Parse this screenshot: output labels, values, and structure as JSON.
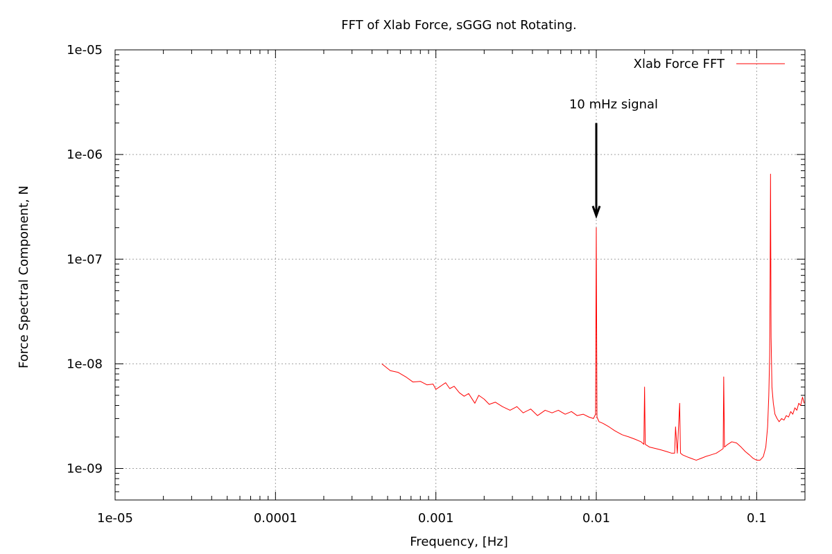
{
  "chart_data": {
    "type": "line",
    "title": "FFT of Xlab Force, sGGG not Rotating.",
    "xlabel": "Frequency, [Hz]",
    "ylabel": "Force Spectral Component, N",
    "x_scale": "log",
    "y_scale": "log",
    "xlim": [
      1e-05,
      0.2
    ],
    "ylim": [
      5e-10,
      1e-05
    ],
    "x_ticks": [
      {
        "value": 1e-05,
        "label": "1e-05"
      },
      {
        "value": 0.0001,
        "label": "0.0001"
      },
      {
        "value": 0.001,
        "label": "0.001"
      },
      {
        "value": 0.01,
        "label": "0.01"
      },
      {
        "value": 0.1,
        "label": "0.1"
      }
    ],
    "y_ticks": [
      {
        "value": 1e-05,
        "label": "1e-05"
      },
      {
        "value": 1e-06,
        "label": "1e-06"
      },
      {
        "value": 1e-07,
        "label": "1e-07"
      },
      {
        "value": 1e-08,
        "label": "1e-08"
      },
      {
        "value": 1e-09,
        "label": "1e-09"
      }
    ],
    "grid": true,
    "legend_position": "top-right",
    "series": [
      {
        "name": "Xlab Force FFT",
        "color": "#ff0000",
        "x": [
          0.00046,
          0.00052,
          0.00058,
          0.00065,
          0.00072,
          0.0008,
          0.00088,
          0.00096,
          0.001,
          0.00105,
          0.00115,
          0.00122,
          0.0013,
          0.0014,
          0.0015,
          0.0016,
          0.00175,
          0.00185,
          0.002,
          0.00215,
          0.00235,
          0.0026,
          0.0029,
          0.0032,
          0.0035,
          0.0039,
          0.0043,
          0.0048,
          0.0053,
          0.0058,
          0.0064,
          0.007,
          0.0076,
          0.0083,
          0.009,
          0.0096,
          0.0099,
          0.01,
          0.0101,
          0.0104,
          0.011,
          0.012,
          0.013,
          0.0145,
          0.016,
          0.0175,
          0.019,
          0.0198,
          0.02,
          0.0202,
          0.0215,
          0.0235,
          0.0255,
          0.0275,
          0.0295,
          0.0308,
          0.0312,
          0.032,
          0.0331,
          0.0335,
          0.0345,
          0.0365,
          0.039,
          0.042,
          0.045,
          0.048,
          0.052,
          0.056,
          0.06,
          0.0618,
          0.0623,
          0.063,
          0.066,
          0.07,
          0.075,
          0.08,
          0.085,
          0.09,
          0.095,
          0.1,
          0.105,
          0.11,
          0.114,
          0.117,
          0.119,
          0.1205,
          0.1212,
          0.122,
          0.123,
          0.1245,
          0.127,
          0.13,
          0.134,
          0.138,
          0.143,
          0.148,
          0.153,
          0.158,
          0.163,
          0.168,
          0.173,
          0.178,
          0.183,
          0.188,
          0.193,
          0.198
        ],
        "y": [
          1e-08,
          8.6e-09,
          8.3e-09,
          7.5e-09,
          6.7e-09,
          6.8e-09,
          6.3e-09,
          6.4e-09,
          5.7e-09,
          6e-09,
          6.6e-09,
          5.8e-09,
          6.1e-09,
          5.3e-09,
          4.9e-09,
          5.2e-09,
          4.2e-09,
          5e-09,
          4.6e-09,
          4.1e-09,
          4.3e-09,
          3.9e-09,
          3.6e-09,
          3.9e-09,
          3.4e-09,
          3.7e-09,
          3.2e-09,
          3.6e-09,
          3.4e-09,
          3.6e-09,
          3.3e-09,
          3.5e-09,
          3.2e-09,
          3.3e-09,
          3.1e-09,
          3e-09,
          3.3e-09,
          2e-07,
          3.1e-09,
          2.8e-09,
          2.7e-09,
          2.5e-09,
          2.3e-09,
          2.1e-09,
          2e-09,
          1.9e-09,
          1.8e-09,
          1.7e-09,
          6e-09,
          1.7e-09,
          1.6e-09,
          1.55e-09,
          1.5e-09,
          1.45e-09,
          1.4e-09,
          1.4e-09,
          2.5e-09,
          1.4e-09,
          4.2e-09,
          1.4e-09,
          1.35e-09,
          1.3e-09,
          1.25e-09,
          1.2e-09,
          1.25e-09,
          1.3e-09,
          1.35e-09,
          1.4e-09,
          1.5e-09,
          1.55e-09,
          7.5e-09,
          1.6e-09,
          1.7e-09,
          1.8e-09,
          1.75e-09,
          1.6e-09,
          1.45e-09,
          1.35e-09,
          1.25e-09,
          1.2e-09,
          1.2e-09,
          1.3e-09,
          1.6e-09,
          2.5e-09,
          5e-09,
          1.2e-08,
          5.5e-08,
          6.5e-07,
          1.8e-08,
          6e-09,
          4.2e-09,
          3.3e-09,
          3e-09,
          2.8e-09,
          3e-09,
          2.9e-09,
          3.2e-09,
          3.1e-09,
          3.5e-09,
          3.3e-09,
          3.8e-09,
          3.6e-09,
          4.2e-09,
          4e-09,
          4.8e-09,
          4.2e-09
        ]
      }
    ],
    "annotations": [
      {
        "text": "10 mHz signal",
        "x": 0.01,
        "arrow_from_y": 2e-06,
        "arrow_to_y": 2.6e-07
      }
    ]
  }
}
